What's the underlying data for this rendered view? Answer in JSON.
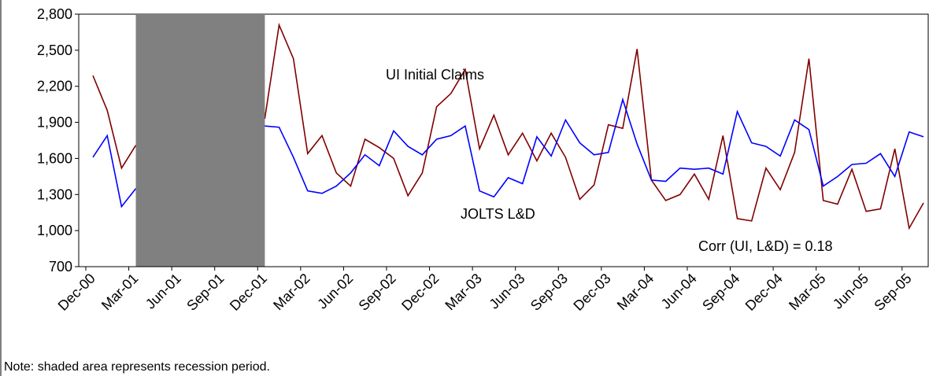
{
  "chart_data": {
    "type": "line",
    "categories": [
      "Dec-00",
      null,
      null,
      "Mar-01",
      null,
      null,
      "Jun-01",
      null,
      null,
      "Sep-01",
      null,
      null,
      "Dec-01",
      null,
      null,
      "Mar-02",
      null,
      null,
      "Jun-02",
      null,
      null,
      "Sep-02",
      null,
      null,
      "Dec-02",
      null,
      null,
      "Mar-03",
      null,
      null,
      "Jun-03",
      null,
      null,
      "Sep-03",
      null,
      null,
      "Dec-03",
      null,
      null,
      "Mar-04",
      null,
      null,
      "Jun-04",
      null,
      null,
      "Sep-04",
      null,
      null,
      "Dec-04",
      null,
      null,
      "Mar-05",
      null,
      null,
      "Jun-05",
      null,
      null,
      "Sep-05",
      null
    ],
    "series": [
      {
        "name": "UI Initial Claims",
        "color": "#800000",
        "values": [
          2290,
          2000,
          1520,
          1710,
          null,
          null,
          null,
          null,
          null,
          null,
          null,
          null,
          1930,
          2710,
          2430,
          1640,
          1790,
          1480,
          1370,
          1760,
          1690,
          1600,
          1290,
          1480,
          2030,
          2140,
          2340,
          1680,
          1960,
          1630,
          1810,
          1580,
          1810,
          1610,
          1260,
          1380,
          1880,
          1850,
          2510,
          1420,
          1250,
          1300,
          1470,
          1260,
          1790,
          1100,
          1080,
          1520,
          1340,
          1650,
          2430,
          1250,
          1220,
          1510,
          1160,
          1180,
          1680,
          1020,
          1230
        ]
      },
      {
        "name": "JOLTS L&D",
        "color": "#0000ff",
        "values": [
          1610,
          1790,
          1200,
          1350,
          null,
          null,
          null,
          null,
          null,
          null,
          null,
          null,
          1870,
          1860,
          1610,
          1330,
          1310,
          1370,
          1480,
          1630,
          1540,
          1830,
          1700,
          1630,
          1760,
          1790,
          1870,
          1330,
          1280,
          1440,
          1390,
          1780,
          1620,
          1920,
          1730,
          1630,
          1650,
          2090,
          1720,
          1420,
          1410,
          1520,
          1510,
          1520,
          1470,
          1990,
          1730,
          1700,
          1620,
          1920,
          1840,
          1370,
          1450,
          1550,
          1560,
          1640,
          1450,
          1820,
          1780
        ]
      }
    ],
    "ylim": [
      700,
      2800
    ],
    "yticks": [
      700,
      {
        "value": 1000,
        "label": "1,000"
      },
      {
        "value": 1300,
        "label": "1,300"
      },
      {
        "value": 1600,
        "label": "1,600"
      },
      {
        "value": 1900,
        "label": "1,900"
      },
      {
        "value": 2200,
        "label": "2,200"
      },
      {
        "value": 2500,
        "label": "2,500"
      },
      {
        "value": 2800,
        "label": "2,800"
      }
    ],
    "shaded": [
      3,
      12
    ],
    "shade_color": "#808080",
    "annotations": [
      "UI Initial Claims",
      "JOLTS L&D",
      "Corr (UI, L&D) = 0.18"
    ],
    "note": "Note: shaded area represents recession period."
  }
}
